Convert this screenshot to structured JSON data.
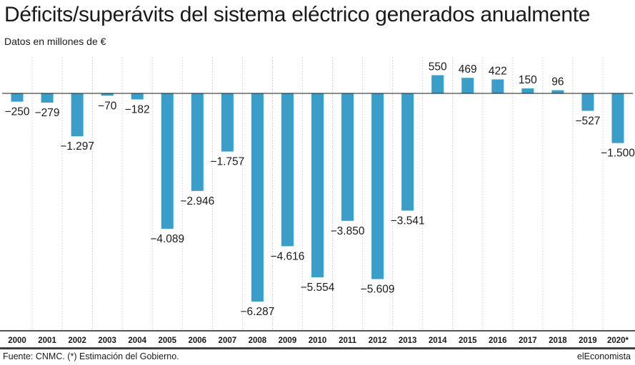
{
  "header": {
    "title": "Déficits/superávits del sistema eléctrico generados anualmente",
    "subtitle": "Datos en millones de €"
  },
  "footer": {
    "source": "Fuente: CNMC. (*) Estimación del Gobierno.",
    "brand": "elEconomista"
  },
  "colors": {
    "bar": "#3a9ec9",
    "text": "#1a1a1a",
    "grid": "#cccccc",
    "axis": "#1a1a1a"
  },
  "chart_data": {
    "type": "bar",
    "categories": [
      "2000",
      "2001",
      "2002",
      "2003",
      "2004",
      "2005",
      "2006",
      "2007",
      "2008",
      "2009",
      "2010",
      "2011",
      "2012",
      "2013",
      "2014",
      "2015",
      "2016",
      "2017",
      "2018",
      "2019",
      "2020*"
    ],
    "values": [
      -250,
      -279,
      -1297,
      -70,
      -182,
      -4089,
      -2946,
      -1757,
      -6287,
      -4616,
      -5554,
      -3850,
      -5609,
      -3541,
      550,
      469,
      422,
      150,
      96,
      -527,
      -1500
    ],
    "value_labels": [
      "−250",
      "−279",
      "−1.297",
      "−70",
      "−182",
      "−4.089",
      "−2.946",
      "−1.757",
      "−6.287",
      "−4.616",
      "−5.554",
      "−3.850",
      "−5.609",
      "−3.541",
      "550",
      "469",
      "422",
      "150",
      "96",
      "−527",
      "−1.500"
    ],
    "title": "Déficits/superávits del sistema eléctrico generados anualmente",
    "ylabel": "Datos en millones de €",
    "ylim": [
      -7300,
      1250
    ],
    "grid": "vertical dotted separators"
  }
}
